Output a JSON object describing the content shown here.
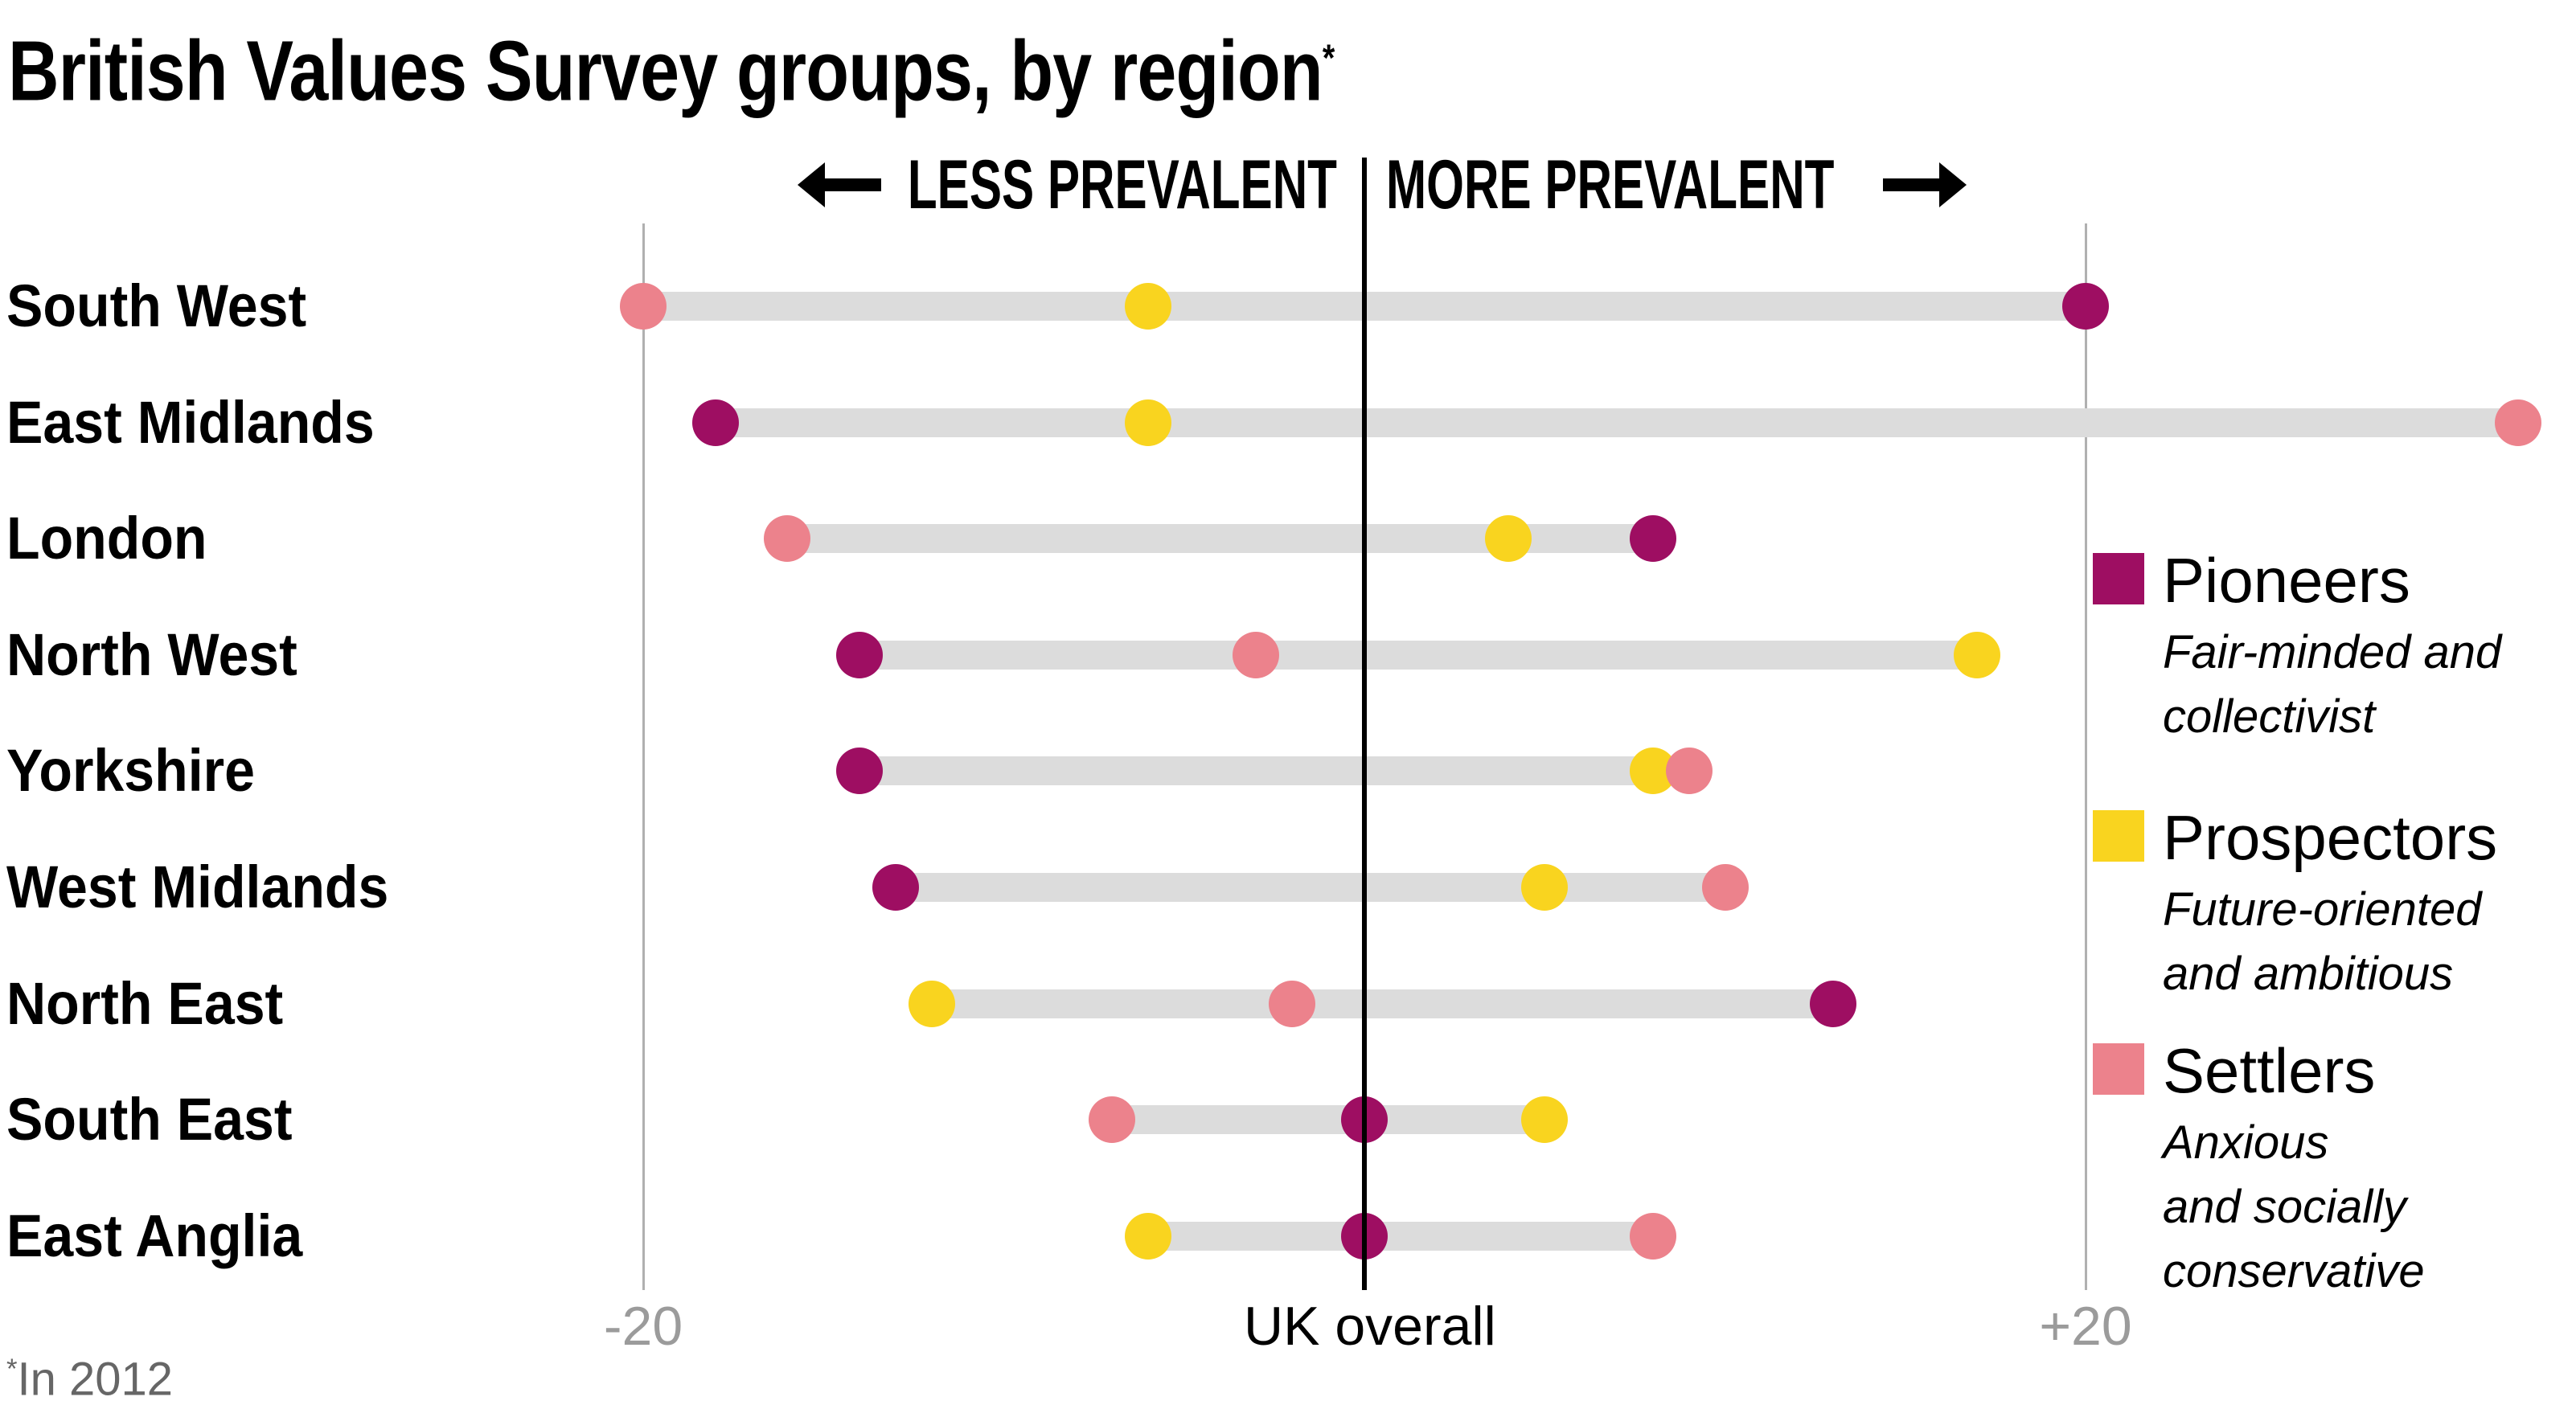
{
  "title": {
    "text": "British Values Survey groups, by region",
    "footnote_marker": "*"
  },
  "header": {
    "less_label": "LESS PREVALENT",
    "more_label": "MORE PREVALENT",
    "left_arrow_icon": "left-arrow",
    "right_arrow_icon": "right-arrow"
  },
  "axis": {
    "min_label": "-20",
    "center_label": "UK overall",
    "max_label": "+20"
  },
  "footnote": {
    "marker": "*",
    "text": "In 2012"
  },
  "colors": {
    "pioneers": "#9e0e62",
    "prospectors": "#f9d41f",
    "settlers": "#ec828c",
    "bar": "#dcdcdc",
    "gridline": "#b0b0b0",
    "baseline": "#000000",
    "axis_label": "#9b9b9b",
    "footnote": "#666666"
  },
  "legend": {
    "items": [
      {
        "name": "Pioneers",
        "color_key": "pioneers",
        "description": [
          "Fair-minded and",
          "collectivist"
        ]
      },
      {
        "name": "Prospectors",
        "color_key": "prospectors",
        "description": [
          "Future-oriented",
          "and ambitious"
        ]
      },
      {
        "name": "Settlers",
        "color_key": "settlers",
        "description": [
          "Anxious",
          "and socially",
          "conservative"
        ]
      }
    ]
  },
  "chart_data": {
    "type": "scatter",
    "subtype": "dumbbell-dot-plot",
    "unit": "percentage points relative to UK overall",
    "title": "British Values Survey groups, by region",
    "xlabel": "UK overall = 0",
    "x_gridlines": [
      -20,
      20
    ],
    "x_center": 0,
    "categories": [
      "South West",
      "East Midlands",
      "London",
      "North West",
      "Yorkshire",
      "West Midlands",
      "North East",
      "South East",
      "East Anglia"
    ],
    "series": [
      {
        "name": "Pioneers",
        "color_key": "pioneers",
        "values": [
          20,
          -18,
          8,
          -14,
          -14,
          -13,
          13,
          0,
          0
        ]
      },
      {
        "name": "Prospectors",
        "color_key": "prospectors",
        "values": [
          -6,
          -6,
          4,
          17,
          8,
          5,
          -12,
          5,
          -6
        ]
      },
      {
        "name": "Settlers",
        "color_key": "settlers",
        "values": [
          -20,
          32,
          -16,
          -3,
          9,
          10,
          -2,
          -7,
          8
        ]
      }
    ],
    "legend_position": "right"
  }
}
